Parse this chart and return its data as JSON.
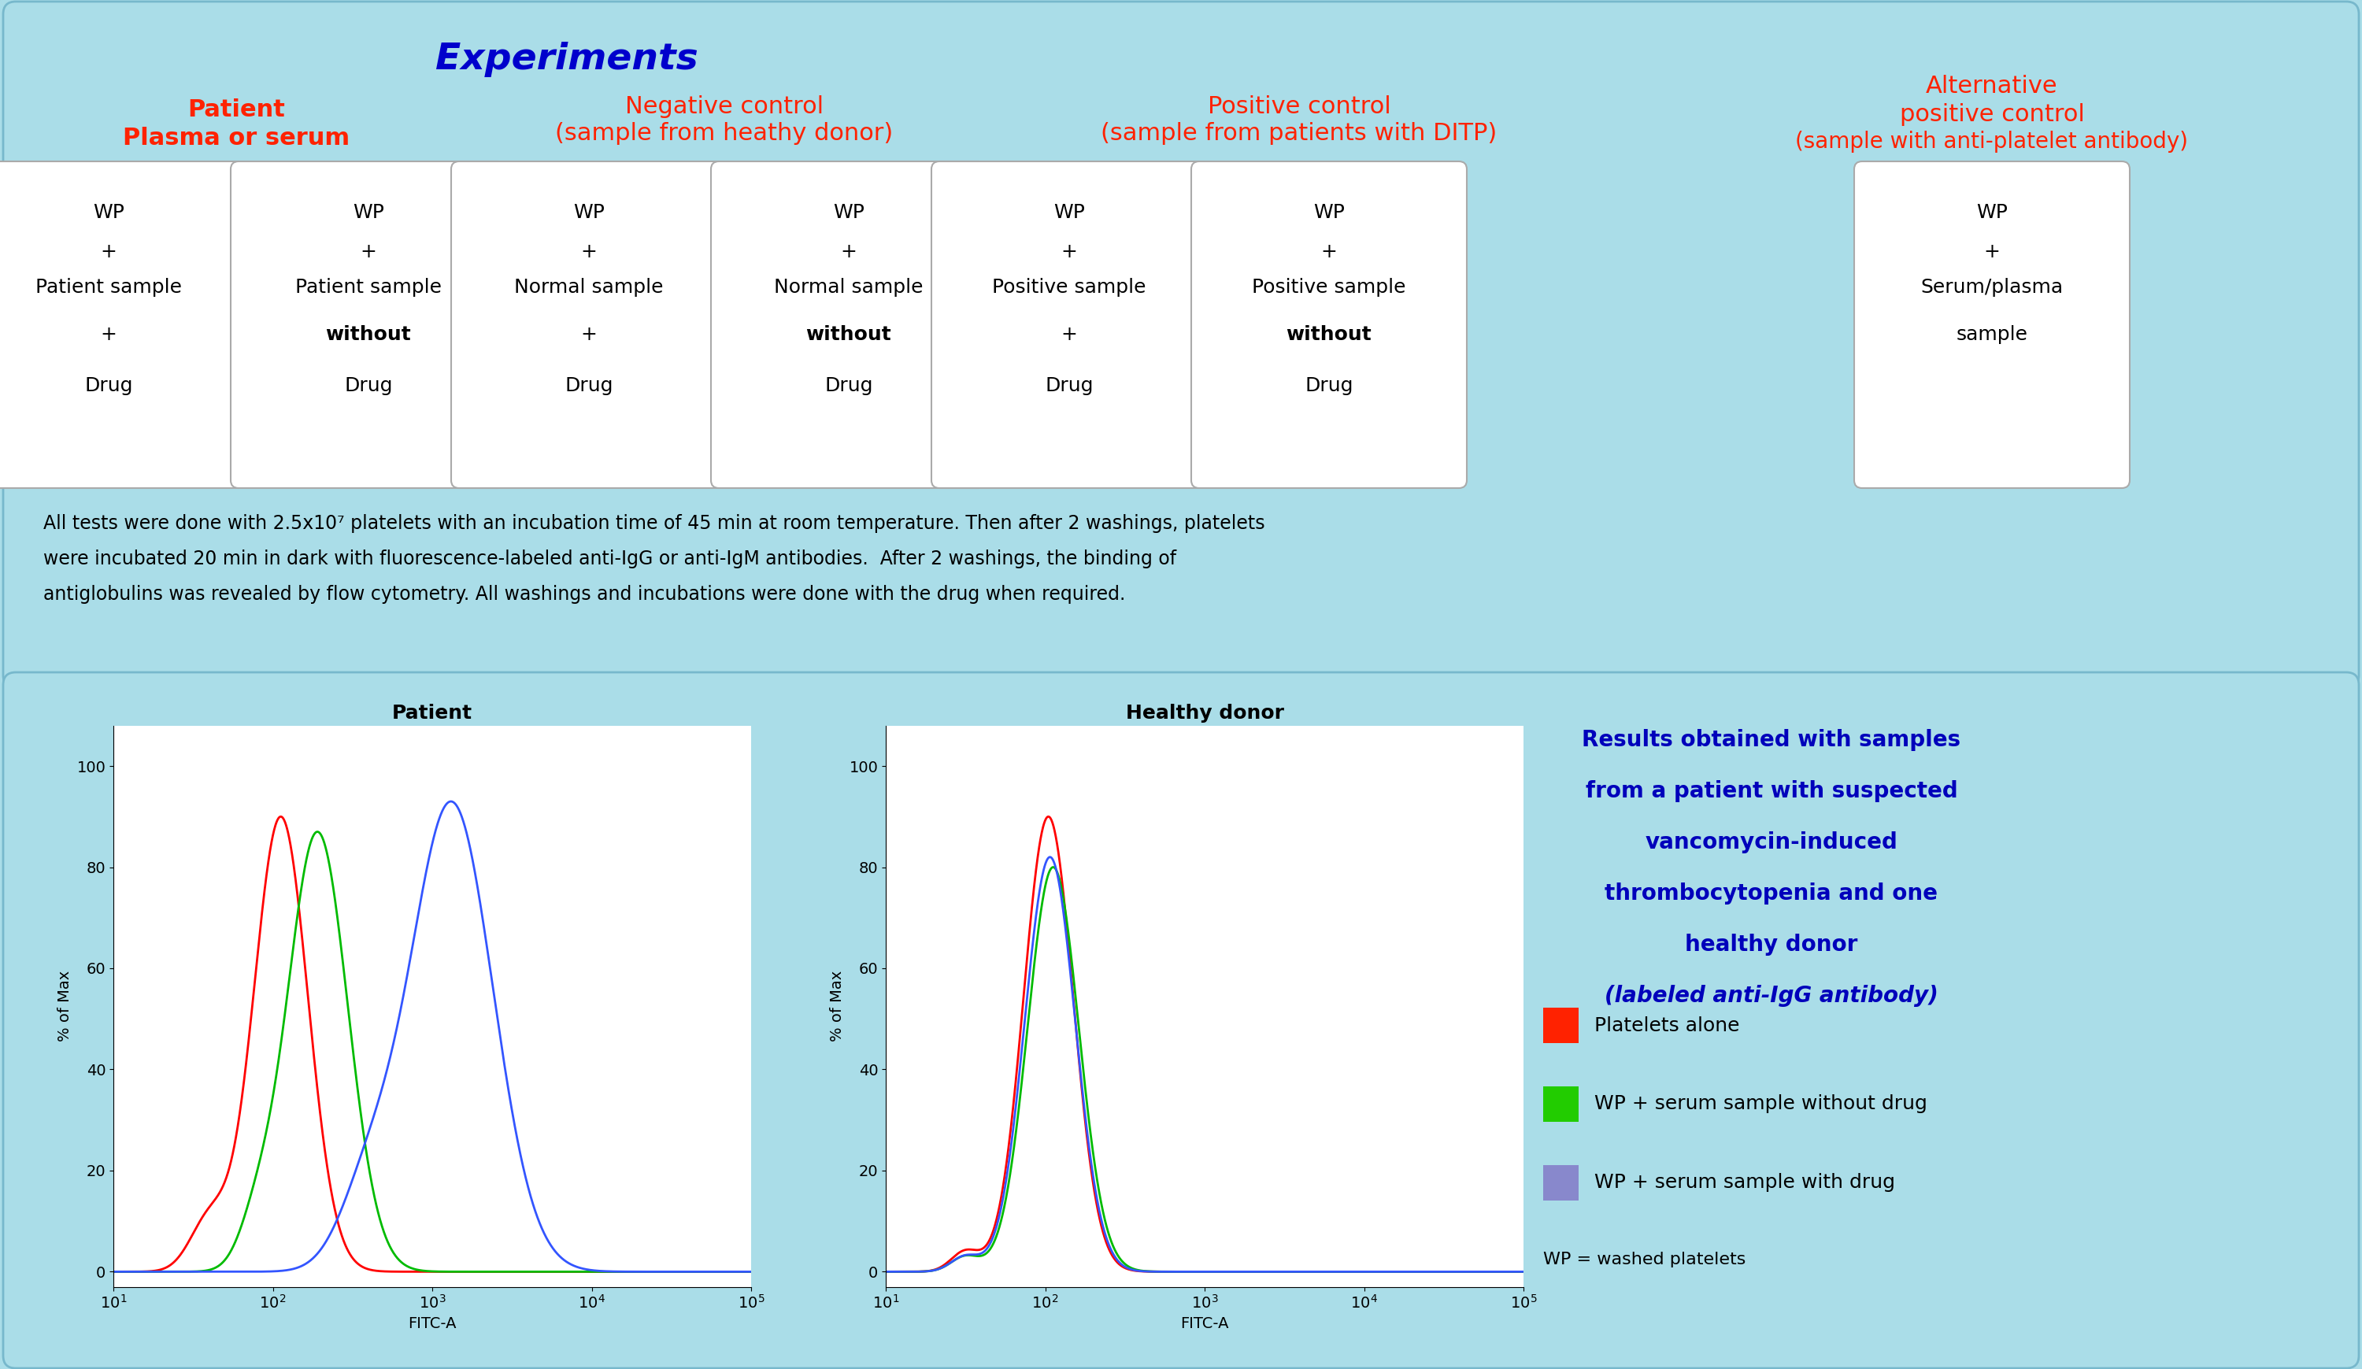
{
  "bg_color": "#aadde8",
  "title_experiments": "Experiments",
  "title_color": "#0000CC",
  "red_color": "#FF2200",
  "header_patient_l1": "Patient",
  "header_patient_l2": "Plasma or serum",
  "header_neg_l1": "Negative control",
  "header_neg_l2": "(sample from heathy donor)",
  "header_pos_l1": "Positive control",
  "header_pos_l2": "(sample from patients with DITP)",
  "header_alt_l1": "Alternative",
  "header_alt_l2": "positive control",
  "header_alt_l3": "(sample with anti-platelet antibody)",
  "box_labels": [
    [
      "WP",
      "+",
      "Patient sample",
      "+",
      "Drug"
    ],
    [
      "WP",
      "+",
      "Patient sample",
      "without",
      "Drug"
    ],
    [
      "WP",
      "+",
      "Normal sample",
      "+",
      "Drug"
    ],
    [
      "WP",
      "+",
      "Normal sample",
      "without",
      "Drug"
    ],
    [
      "WP",
      "+",
      "Positive sample",
      "+",
      "Drug"
    ],
    [
      "WP",
      "+",
      "Positive sample",
      "without",
      "Drug"
    ],
    [
      "WP",
      "+",
      "Serum/plasma",
      "sample",
      ""
    ]
  ],
  "box_bold": [
    [
      false,
      false,
      false,
      false,
      false
    ],
    [
      false,
      false,
      false,
      true,
      false
    ],
    [
      false,
      false,
      false,
      false,
      false
    ],
    [
      false,
      false,
      false,
      true,
      false
    ],
    [
      false,
      false,
      false,
      false,
      false
    ],
    [
      false,
      false,
      false,
      true,
      false
    ],
    [
      false,
      false,
      false,
      false,
      false
    ]
  ],
  "footnote_l1": "All tests were done with 2.5x10⁷ platelets with an incubation time of 45 min at room temperature. Then after 2 washings, platelets",
  "footnote_l2": "were incubated 20 min in dark with fluorescence-labeled anti-IgG or anti-IgM antibodies.  After 2 washings, the binding of",
  "footnote_l3": "antiglobulins was revealed by flow cytometry. All washings and incubations were done with the drug when required.",
  "patient_title": "Patient",
  "donor_title": "Healthy donor",
  "xlabel": "FITC-A",
  "ylabel": "% of Max",
  "results_lines": [
    "Results obtained with samples",
    "from a patient with suspected",
    "vancomycin-induced",
    "thrombocytopenia and one",
    "healthy donor",
    "(labeled anti-IgG antibody)"
  ],
  "results_italic_last": true,
  "legend_colors": [
    "#FF2200",
    "#22CC00",
    "#8888CC"
  ],
  "legend_labels": [
    "Platelets alone",
    "WP + serum sample without drug",
    "WP + serum sample with drug"
  ],
  "wp_note": "WP = washed platelets"
}
